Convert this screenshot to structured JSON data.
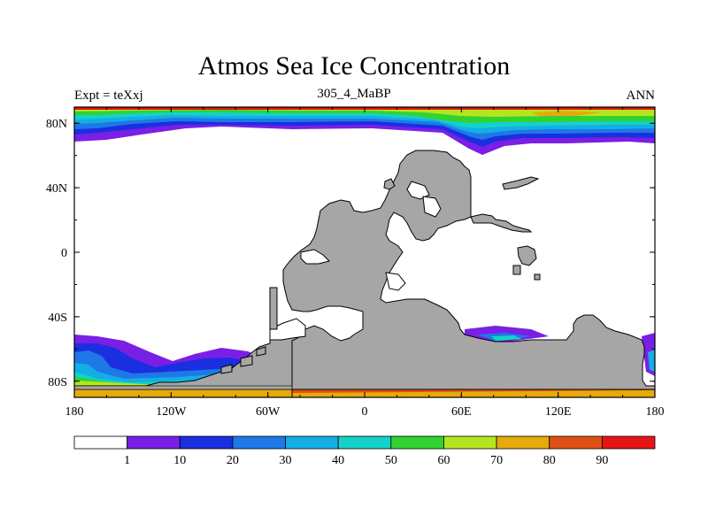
{
  "title": "Atmos Sea Ice Concentration",
  "subtitle_left": "Expt = teXxj",
  "subtitle_center": "305_4_MaBP",
  "subtitle_right": "ANN",
  "chart_data": {
    "type": "heatmap",
    "title": "Atmos Sea Ice Concentration",
    "variable": "sea ice concentration",
    "units": "%",
    "lon_range": [
      -180,
      180
    ],
    "lat_range": [
      -90,
      90
    ],
    "x_ticks": [
      "180",
      "120W",
      "60W",
      "0",
      "60E",
      "120E",
      "180"
    ],
    "y_ticks": [
      "80N",
      "40N",
      "0",
      "40S",
      "80S"
    ],
    "colorbar": {
      "levels": [
        "1",
        "10",
        "20",
        "30",
        "40",
        "50",
        "60",
        "70",
        "80",
        "90"
      ],
      "colors": [
        "#ffffff",
        "#7a1fe6",
        "#1a2fe0",
        "#1e78e6",
        "#14aee6",
        "#14d2c8",
        "#32d232",
        "#b4e61e",
        "#e6aa0a",
        "#e05014",
        "#e61414"
      ]
    },
    "land_color": "#a6a6a6"
  },
  "colors": {
    "land": "#a6a6a6",
    "c0": "#ffffff",
    "c1": "#7a1fe6",
    "c2": "#1a2fe0",
    "c3": "#1e78e6",
    "c4": "#14aee6",
    "c5": "#14d2c8",
    "c6": "#32d232",
    "c7": "#b4e61e",
    "c8": "#e6aa0a",
    "c9": "#e05014",
    "c10": "#e61414"
  }
}
